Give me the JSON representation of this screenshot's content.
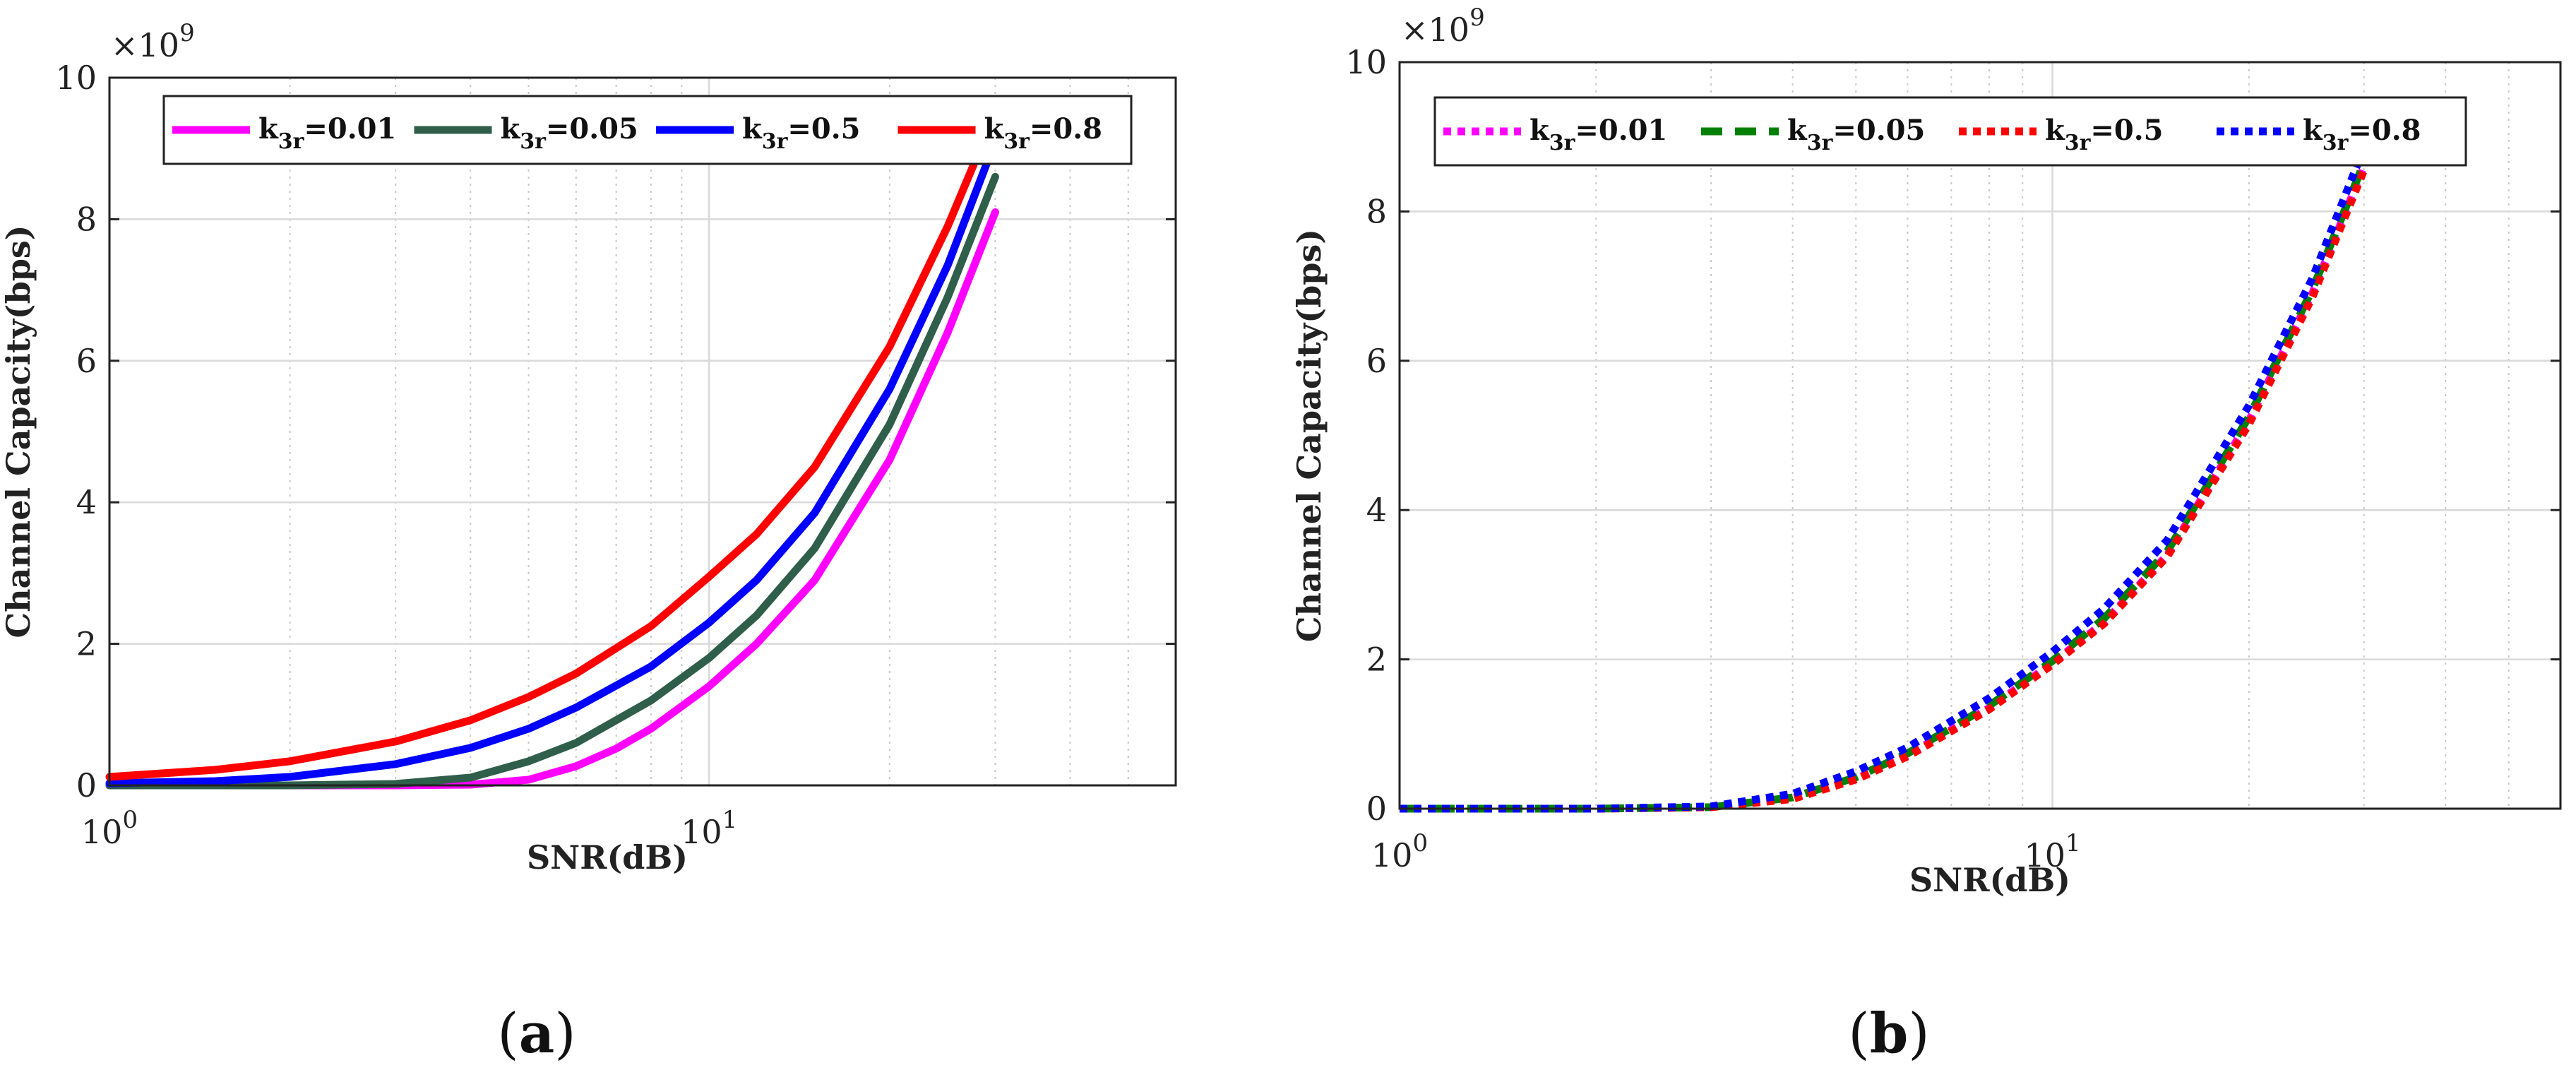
{
  "chart_data": [
    {
      "type": "line",
      "panel": "(a)",
      "caption_letter": "a",
      "xlabel": "SNR(dB)",
      "ylabel": "Channel Capacity(bps)",
      "xscale": "log",
      "xlim": [
        1,
        60
      ],
      "ylim": [
        0,
        10
      ],
      "y_multiplier": "×10",
      "y_multiplier_exp": "9",
      "x_tick_labels": [
        {
          "base": "10",
          "exp": "0",
          "value": 1
        },
        {
          "base": "10",
          "exp": "1",
          "value": 10
        }
      ],
      "y_ticks": [
        0,
        2,
        4,
        6,
        8,
        10
      ],
      "grid": true,
      "legend_position": "top",
      "series": [
        {
          "name": "k3r=0.01",
          "label_main": "k",
          "label_sub": "3r",
          "label_rest": "=0.01",
          "color": "#ff00ff",
          "style": "solid",
          "x": [
            1,
            3,
            4,
            5,
            6,
            7,
            8,
            10,
            12,
            15,
            20,
            25,
            30
          ],
          "values": [
            0,
            0,
            0.01,
            0.08,
            0.27,
            0.52,
            0.8,
            1.4,
            2.0,
            2.9,
            4.6,
            6.4,
            8.1
          ]
        },
        {
          "name": "k3r=0.05",
          "label_main": "k",
          "label_sub": "3r",
          "label_rest": "=0.05",
          "color": "#2f5e4a",
          "style": "solid",
          "x": [
            1,
            2,
            3,
            4,
            5,
            6,
            8,
            10,
            12,
            15,
            20,
            25,
            30
          ],
          "values": [
            0,
            0,
            0.02,
            0.11,
            0.34,
            0.6,
            1.2,
            1.8,
            2.4,
            3.35,
            5.1,
            6.9,
            8.6
          ]
        },
        {
          "name": "k3r=0.5",
          "label_main": "k",
          "label_sub": "3r",
          "label_rest": "=0.5",
          "color": "#0000ff",
          "style": "solid",
          "x": [
            1,
            1.5,
            2,
            3,
            4,
            5,
            6,
            8,
            10,
            12,
            15,
            20,
            25,
            30
          ],
          "values": [
            0.03,
            0.06,
            0.12,
            0.3,
            0.53,
            0.8,
            1.1,
            1.68,
            2.3,
            2.9,
            3.85,
            5.6,
            7.35,
            9.1
          ]
        },
        {
          "name": "k3r=0.8",
          "label_main": "k",
          "label_sub": "3r",
          "label_rest": "=0.8",
          "color": "#ff0000",
          "style": "solid",
          "x": [
            1,
            1.5,
            2,
            3,
            4,
            5,
            6,
            8,
            10,
            12,
            15,
            20,
            25,
            29
          ],
          "values": [
            0.12,
            0.22,
            0.34,
            0.62,
            0.92,
            1.25,
            1.58,
            2.25,
            2.95,
            3.55,
            4.5,
            6.2,
            7.9,
            9.2
          ]
        }
      ]
    },
    {
      "type": "line",
      "panel": "(b)",
      "caption_letter": "b",
      "xlabel": "SNR(dB)",
      "ylabel": "Channel Capacity(bps)",
      "xscale": "log",
      "xlim": [
        1,
        60
      ],
      "ylim": [
        0,
        10
      ],
      "y_multiplier": "×10",
      "y_multiplier_exp": "9",
      "x_tick_labels": [
        {
          "base": "10",
          "exp": "0",
          "value": 1
        },
        {
          "base": "10",
          "exp": "1",
          "value": 10
        }
      ],
      "y_ticks": [
        0,
        2,
        4,
        6,
        8,
        10
      ],
      "grid": true,
      "legend_position": "top",
      "series": [
        {
          "name": "k3r=0.01",
          "label_main": "k",
          "label_sub": "3r",
          "label_rest": "=0.01",
          "color": "#ff00ff",
          "style": "dotted",
          "x": [
            1,
            2,
            3,
            4,
            5,
            6,
            8,
            10,
            12,
            15,
            20,
            25,
            30
          ],
          "values": [
            0,
            0,
            0.02,
            0.14,
            0.4,
            0.72,
            1.35,
            1.95,
            2.5,
            3.4,
            5.2,
            6.9,
            8.6
          ]
        },
        {
          "name": "k3r=0.05",
          "label_main": "k",
          "label_sub": "3r",
          "label_rest": "=0.05",
          "color": "#008000",
          "style": "dashed",
          "x": [
            1,
            2,
            3,
            4,
            5,
            6,
            8,
            10,
            12,
            15,
            20,
            25,
            30
          ],
          "values": [
            0,
            0,
            0.02,
            0.15,
            0.42,
            0.74,
            1.38,
            1.98,
            2.55,
            3.45,
            5.25,
            6.95,
            8.65
          ]
        },
        {
          "name": "k3r=0.5",
          "label_main": "k",
          "label_sub": "3r",
          "label_rest": "=0.5",
          "color": "#ff0000",
          "style": "dotted",
          "x": [
            1,
            2,
            3,
            4,
            5,
            6,
            8,
            10,
            12,
            15,
            20,
            25,
            30
          ],
          "values": [
            0,
            0,
            0.02,
            0.13,
            0.39,
            0.7,
            1.33,
            1.93,
            2.48,
            3.38,
            5.15,
            6.85,
            8.55
          ]
        },
        {
          "name": "k3r=0.8",
          "label_main": "k",
          "label_sub": "3r",
          "label_rest": "=0.8",
          "color": "#0000ff",
          "style": "dotted",
          "x": [
            1,
            2,
            3,
            4,
            5,
            6,
            8,
            10,
            12,
            15,
            20,
            25,
            30
          ],
          "values": [
            0,
            0,
            0.03,
            0.2,
            0.5,
            0.82,
            1.48,
            2.1,
            2.68,
            3.6,
            5.4,
            7.1,
            8.85
          ]
        }
      ]
    }
  ]
}
